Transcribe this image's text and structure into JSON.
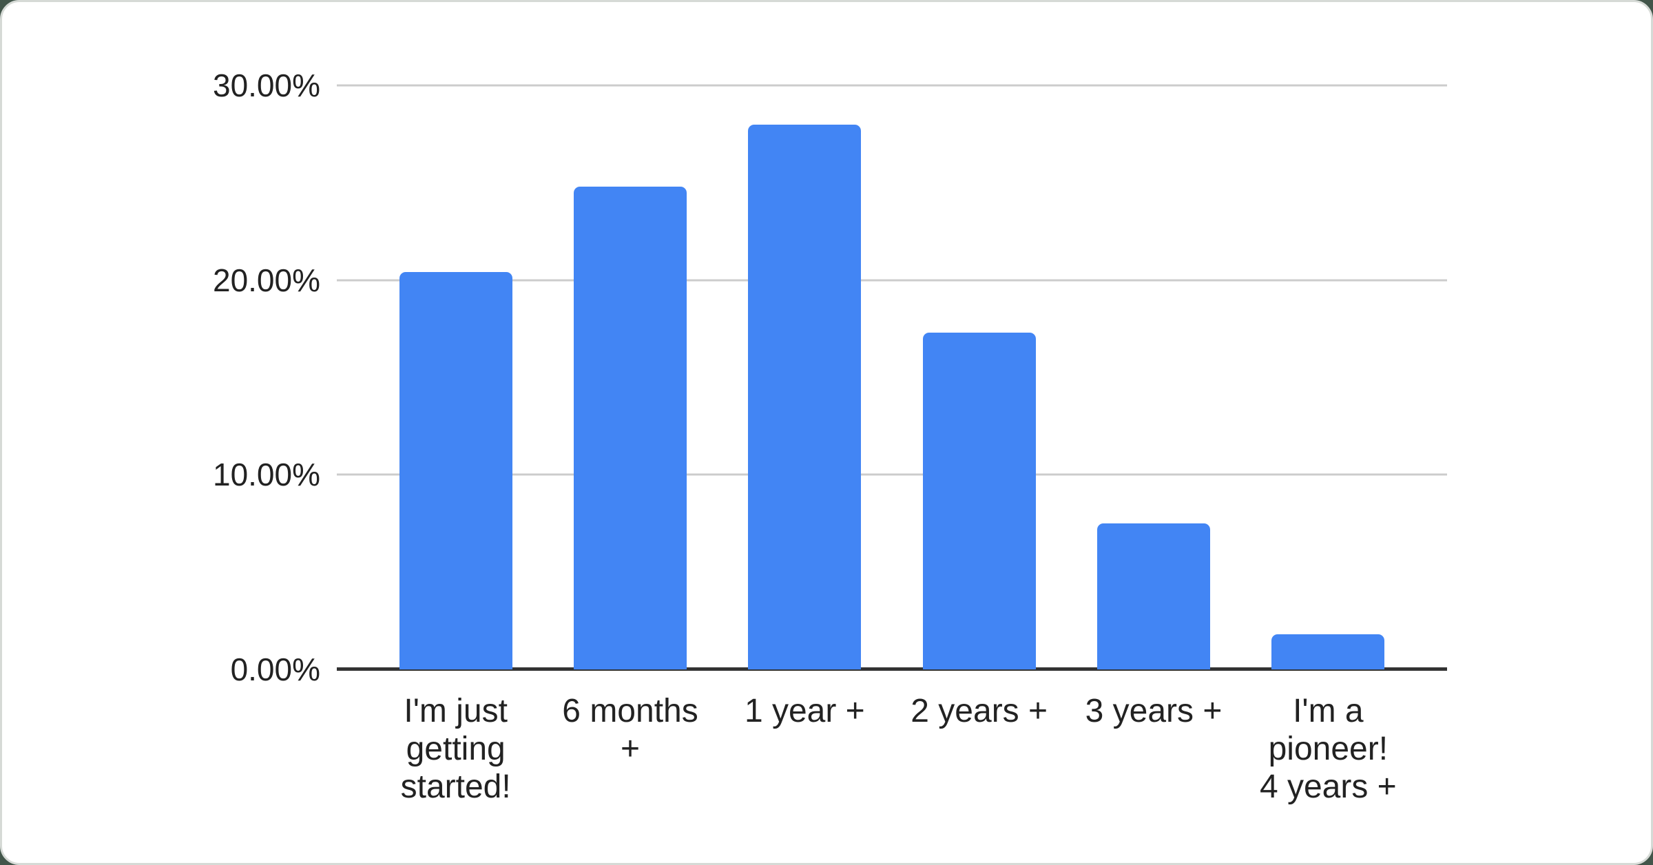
{
  "window": {
    "background_color": "#42554a",
    "card_background": "#ffffff",
    "card_border_color": "#d6dad6"
  },
  "chart_data": {
    "type": "bar",
    "title": "",
    "categories": [
      "I'm just getting started!",
      "6 months +",
      "1 year +",
      "2 years +",
      "3 years +",
      "I'm a pioneer! 4 years +"
    ],
    "category_lines": [
      [
        "I'm just",
        "getting",
        "started!"
      ],
      [
        "6 months",
        "+"
      ],
      [
        "1 year +"
      ],
      [
        "2 years +"
      ],
      [
        "3 years +"
      ],
      [
        "I'm a",
        "pioneer!",
        "4 years +"
      ]
    ],
    "values": [
      20.4,
      24.8,
      28.0,
      17.3,
      7.5,
      1.8
    ],
    "value_unit": "percent",
    "ylim": [
      0,
      30
    ],
    "y_ticks": [
      {
        "value": 0,
        "label": "0.00%"
      },
      {
        "value": 10,
        "label": "10.00%"
      },
      {
        "value": 20,
        "label": "20.00%"
      },
      {
        "value": 30,
        "label": "30.00%"
      }
    ],
    "xlabel": "",
    "ylabel": "",
    "grid": true,
    "legend_position": "none",
    "bar_color": "#4285f4",
    "gridline_color": "#cccccc",
    "axis_line_color": "#333333",
    "label_color": "#222222"
  }
}
